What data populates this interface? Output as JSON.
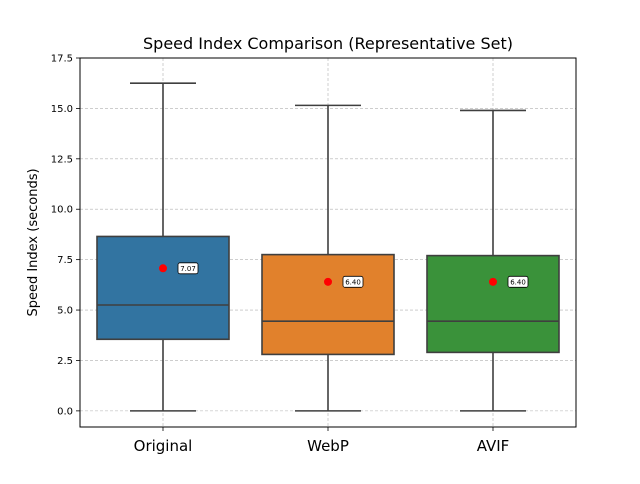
{
  "chart_data": {
    "type": "box",
    "title": "Speed Index Comparison (Representative Set)",
    "xlabel": "",
    "ylabel": "Speed Index (seconds)",
    "ylim": [
      -0.8,
      17.5
    ],
    "yticks": [
      0.0,
      2.5,
      5.0,
      7.5,
      10.0,
      12.5,
      15.0,
      17.5
    ],
    "ytick_labels": [
      "0.0",
      "2.5",
      "5.0",
      "7.5",
      "10.0",
      "12.5",
      "15.0",
      "17.5"
    ],
    "grid": true,
    "legend": "none",
    "categories": [
      "Original",
      "WebP",
      "AVIF"
    ],
    "series": [
      {
        "category": "Original",
        "color": "#3274a1",
        "whisker_low": 0.0,
        "q1": 3.55,
        "median": 5.25,
        "q3": 8.65,
        "whisker_high": 16.25,
        "mean": 7.07,
        "mean_label": "7.07"
      },
      {
        "category": "WebP",
        "color": "#e1812c",
        "whisker_low": 0.0,
        "q1": 2.8,
        "median": 4.45,
        "q3": 7.75,
        "whisker_high": 15.15,
        "mean": 6.4,
        "mean_label": "6.40"
      },
      {
        "category": "AVIF",
        "color": "#3a923a",
        "whisker_low": 0.0,
        "q1": 2.9,
        "median": 4.45,
        "q3": 7.7,
        "whisker_high": 14.9,
        "mean": 6.4,
        "mean_label": "6.40"
      }
    ],
    "mean_marker_color": "#ff0000",
    "line_color": "#3f3f3f"
  }
}
